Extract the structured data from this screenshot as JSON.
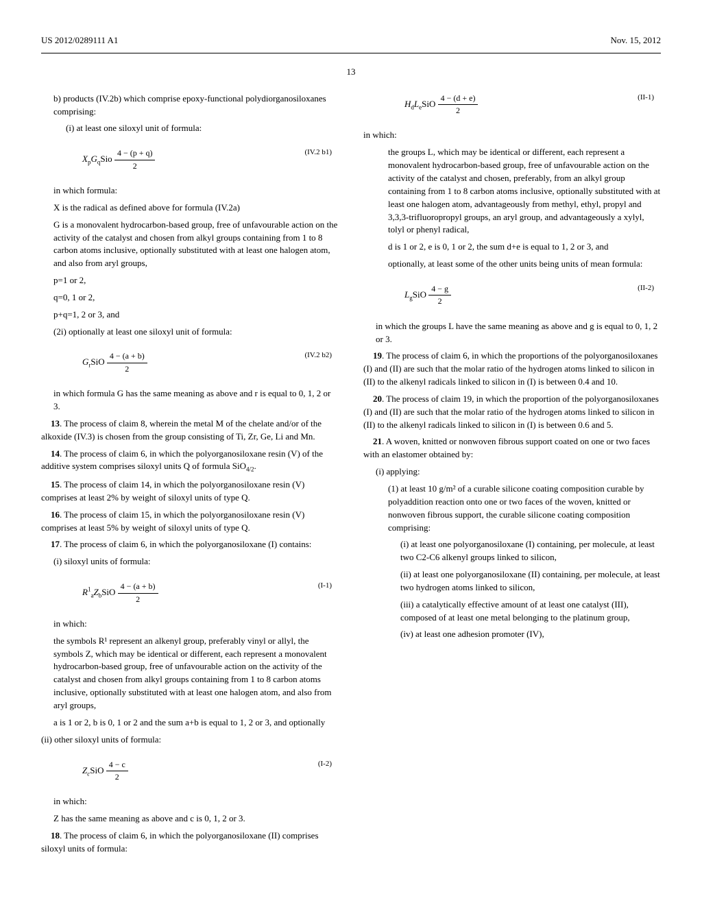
{
  "header": {
    "pub_number": "US 2012/0289111 A1",
    "pub_date": "Nov. 15, 2012"
  },
  "page_number": "13",
  "col_left": {
    "b_intro": "b)  products (IV.2b) which comprise epoxy-functional polydiorganosiloxanes comprising:",
    "b_i": "(i) at least one siloxyl unit of formula:",
    "f1_prefix": "X",
    "f1_sub1": "p",
    "f1_G": "G",
    "f1_sub2": "q",
    "f1_sio": "Sio",
    "f1_num": "4 − (p + q)",
    "f1_den": "2",
    "f1_label": "(IV.2 b1)",
    "in_which": "in which formula:",
    "x_def": "X is the radical as defined above for formula (IV.2a)",
    "g_def": "G is a monovalent hydrocarbon-based group, free of unfavourable action on the activity of the catalyst and chosen from alkyl groups containing from 1 to 8 carbon atoms inclusive, optionally substituted with at least one halogen atom, and also from aryl groups,",
    "p_def": "p=1 or 2,",
    "q_def": "q=0, 1 or 2,",
    "pq_def": "p+q=1, 2 or 3, and",
    "b_2i": "(2i) optionally at least one siloxyl unit of formula:",
    "f2_G": "G",
    "f2_subr": "r",
    "f2_sio": "SiO",
    "f2_num": "4 − (a + b)",
    "f2_den": "2",
    "f2_label": "(IV.2 b2)",
    "f2_after": "in which formula G has the same meaning as above and r is equal to 0, 1, 2 or 3.",
    "c13_num": "13",
    "c13": ". The process of claim 8, wherein the metal M of the chelate and/or of the alkoxide (IV.3) is chosen from the group consisting of Ti, Zr, Ge, Li and Mn.",
    "c14_num": "14",
    "c14": ". The process of claim 6, in which the polyorganosiloxane resin (V) of the additive system comprises siloxyl units Q of formula SiO",
    "c14_sub": "4/2",
    "c14_end": ".",
    "c15_num": "15",
    "c15": ". The process of claim 14, in which the polyorganosiloxane resin (V) comprises at least 2% by weight of siloxyl units of type Q.",
    "c16_num": "16",
    "c16": ". The process of claim 15, in which the polyorganosiloxane resin (V) comprises at least 5% by weight of siloxyl units of type Q.",
    "c17_num": "17",
    "c17": ". The process of claim 6, in which the polyorganosiloxane (I) contains:",
    "c17_i": "(i) siloxyl units of formula:",
    "f3_R": "R",
    "f3_sup1": "1",
    "f3_suba": "a",
    "f3_Z": "Z",
    "f3_subb": "b",
    "f3_sio": "SiO",
    "f3_num": "4 − (a + b)",
    "f3_den": "2",
    "f3_label": "(I-1)",
    "f3_in_which": "in which:",
    "f3_r_def": "the symbols R¹ represent an alkenyl group, preferably vinyl or allyl, the symbols Z, which may be identical or different, each represent a monovalent hydrocarbon-based group, free of unfavourable action on the activity of the catalyst and chosen from alkyl groups containing from 1 to 8 carbon atoms inclusive, optionally substituted with at least one halogen atom, and also from aryl groups,",
    "f3_a_def": "a is 1 or 2, b is 0, 1 or 2 and the sum a+b is equal to 1, 2 or 3, and optionally"
  },
  "col_right": {
    "ii_intro": "(ii) other siloxyl units of formula:",
    "f4_Z": "Z",
    "f4_c": "c",
    "f4_sio": "SiO",
    "f4_num": "4 − c",
    "f4_den": "2",
    "f4_label": "(I-2)",
    "f4_in_which": "in which:",
    "f4_z_def": "Z has the same meaning as above and c is 0, 1, 2 or 3.",
    "c18_num": "18",
    "c18": ". The process of claim 6, in which the polyorganosiloxane (II) comprises siloxyl units of formula:",
    "f5_H": "H",
    "f5_d": "d",
    "f5_L": "L",
    "f5_e": "e",
    "f5_sio": "SiO",
    "f5_num": "4 − (d + e)",
    "f5_den": "2",
    "f5_label": "(II-1)",
    "f5_in_which": "in which:",
    "f5_l_def": "the groups L, which may be identical or different, each represent a monovalent hydrocarbon-based group, free of unfavourable action on the activity of the catalyst and chosen, preferably, from an alkyl group containing from 1 to 8 carbon atoms inclusive, optionally substituted with at least one halogen atom, advantageously from methyl, ethyl, propyl and 3,3,3-trifluoropropyl groups, an aryl group, and advantageously a xylyl, tolyl or phenyl radical,",
    "f5_d_def": "d is 1 or 2, e is 0, 1 or 2, the sum d+e is equal to 1, 2 or 3, and",
    "f5_opt": "optionally, at least some of the other units being units of mean formula:",
    "f6_L": "L",
    "f6_g": "g",
    "f6_sio": "SiO",
    "f6_num": "4 − g",
    "f6_den": "2",
    "f6_label": "(II-2)",
    "f6_after": "in which the groups L have the same meaning as above and g is equal to 0, 1, 2 or 3.",
    "c19_num": "19",
    "c19": ". The process of claim 6, in which the proportions of the polyorganosiloxanes (I) and (II) are such that the molar ratio of the hydrogen atoms linked to silicon in (II) to the alkenyl radicals linked to silicon in (I) is between 0.4 and 10.",
    "c20_num": "20",
    "c20": ". The process of claim 19, in which the proportion of the polyorganosiloxanes (I) and (II) are such that the molar ratio of the hydrogen atoms linked to silicon in (II) to the alkenyl radicals linked to silicon in (I) is between 0.6 and 5.",
    "c21_num": "21",
    "c21": ". A woven, knitted or nonwoven fibrous support coated on one or two faces with an elastomer obtained by:",
    "c21_i": "(i) applying:",
    "c21_1": "(1) at least 10 g/m² of a curable silicone coating composition curable by polyaddition reaction onto one or two faces of the woven, knitted or nonwoven fibrous support, the curable silicone coating composition comprising:",
    "c21_1_i": "(i) at least one polyorganosiloxane (I) containing, per molecule, at least two C2-C6 alkenyl groups linked to silicon,",
    "c21_1_ii": "(ii) at least one polyorganosiloxane (II) containing, per molecule, at least two hydrogen atoms linked to silicon,",
    "c21_1_iii": "(iii) a catalytically effective amount of at least one catalyst (III), composed of at least one metal belonging to the platinum group,",
    "c21_1_iv": "(iv) at least one adhesion promoter (IV),"
  }
}
